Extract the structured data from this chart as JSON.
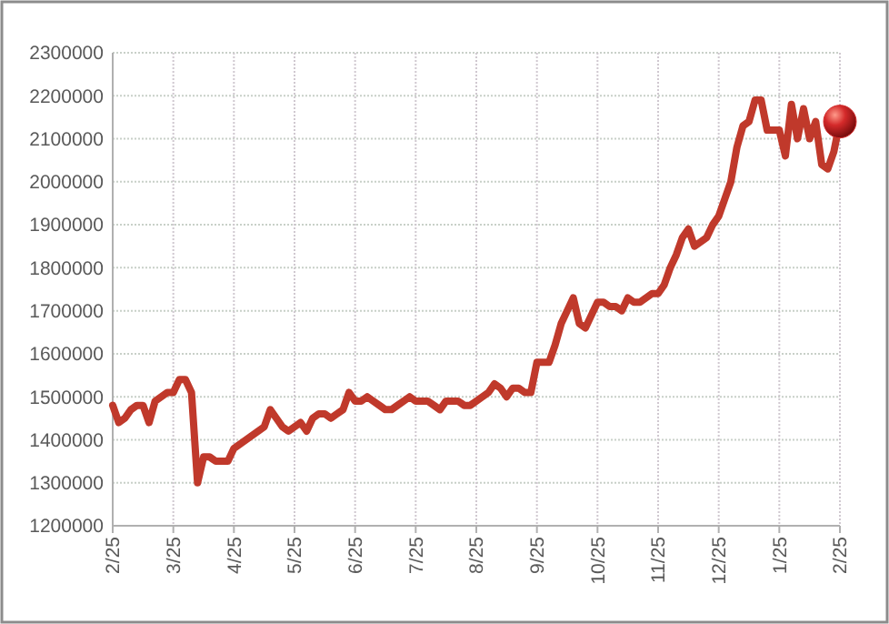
{
  "chart_data": {
    "type": "line",
    "categories": [
      "2/25",
      null,
      null,
      null,
      null,
      null,
      null,
      null,
      null,
      null,
      "3/25",
      null,
      null,
      null,
      null,
      null,
      null,
      null,
      null,
      null,
      "4/25",
      null,
      null,
      null,
      null,
      null,
      null,
      null,
      null,
      null,
      "5/25",
      null,
      null,
      null,
      null,
      null,
      null,
      null,
      null,
      null,
      "6/25",
      null,
      null,
      null,
      null,
      null,
      null,
      null,
      null,
      null,
      "7/25",
      null,
      null,
      null,
      null,
      null,
      null,
      null,
      null,
      null,
      "8/25",
      null,
      null,
      null,
      null,
      null,
      null,
      null,
      null,
      null,
      "9/25",
      null,
      null,
      null,
      null,
      null,
      null,
      null,
      null,
      null,
      "10/25",
      null,
      null,
      null,
      null,
      null,
      null,
      null,
      null,
      null,
      "11/25",
      null,
      null,
      null,
      null,
      null,
      null,
      null,
      null,
      null,
      "12/25",
      null,
      null,
      null,
      null,
      null,
      null,
      null,
      null,
      null,
      "1/25",
      null,
      null,
      null,
      null,
      null,
      null,
      null,
      null,
      null,
      "2/25"
    ],
    "ylim": [
      1200000,
      2300000
    ],
    "yticks": [
      1200000,
      1300000,
      1400000,
      1500000,
      1600000,
      1700000,
      1800000,
      1900000,
      2000000,
      2100000,
      2200000,
      2300000
    ],
    "grid": true,
    "series": [
      {
        "color": "#c0392b",
        "values": [
          1480000,
          1440000,
          1450000,
          1470000,
          1480000,
          1480000,
          1440000,
          1490000,
          1500000,
          1510000,
          1510000,
          1540000,
          1540000,
          1510000,
          1300000,
          1360000,
          1360000,
          1350000,
          1350000,
          1350000,
          1380000,
          1390000,
          1400000,
          1410000,
          1420000,
          1430000,
          1470000,
          1450000,
          1430000,
          1420000,
          1430000,
          1440000,
          1420000,
          1450000,
          1460000,
          1460000,
          1450000,
          1460000,
          1470000,
          1510000,
          1490000,
          1490000,
          1500000,
          1490000,
          1480000,
          1470000,
          1470000,
          1480000,
          1490000,
          1500000,
          1490000,
          1490000,
          1490000,
          1480000,
          1470000,
          1490000,
          1490000,
          1490000,
          1480000,
          1480000,
          1490000,
          1500000,
          1510000,
          1530000,
          1520000,
          1500000,
          1520000,
          1520000,
          1510000,
          1510000,
          1580000,
          1580000,
          1580000,
          1620000,
          1670000,
          1700000,
          1730000,
          1670000,
          1660000,
          1690000,
          1720000,
          1720000,
          1710000,
          1710000,
          1700000,
          1730000,
          1720000,
          1720000,
          1730000,
          1740000,
          1740000,
          1760000,
          1800000,
          1830000,
          1870000,
          1890000,
          1850000,
          1860000,
          1870000,
          1900000,
          1920000,
          1960000,
          2000000,
          2080000,
          2130000,
          2140000,
          2190000,
          2190000,
          2120000,
          2120000,
          2120000,
          2060000,
          2180000,
          2100000,
          2170000,
          2100000,
          2140000,
          2040000,
          2030000,
          2070000,
          2140000
        ]
      },
      {
        "type": "scatter",
        "color": "#d42a2a",
        "marker": "circle",
        "values": [
          null,
          null,
          null,
          null,
          null,
          null,
          null,
          null,
          null,
          null,
          null,
          null,
          null,
          null,
          null,
          null,
          null,
          null,
          null,
          null,
          null,
          null,
          null,
          null,
          null,
          null,
          null,
          null,
          null,
          null,
          null,
          null,
          null,
          null,
          null,
          null,
          null,
          null,
          null,
          null,
          null,
          null,
          null,
          null,
          null,
          null,
          null,
          null,
          null,
          null,
          null,
          null,
          null,
          null,
          null,
          null,
          null,
          null,
          null,
          null,
          null,
          null,
          null,
          null,
          null,
          null,
          null,
          null,
          null,
          null,
          null,
          null,
          null,
          null,
          null,
          null,
          null,
          null,
          null,
          null,
          null,
          null,
          null,
          null,
          null,
          null,
          null,
          null,
          null,
          null,
          null,
          null,
          null,
          null,
          null,
          null,
          null,
          null,
          null,
          null,
          null,
          null,
          null,
          null,
          null,
          null,
          null,
          null,
          null,
          null,
          null,
          null,
          null,
          null,
          null,
          null,
          null,
          null,
          null,
          null,
          2140000
        ]
      }
    ]
  }
}
